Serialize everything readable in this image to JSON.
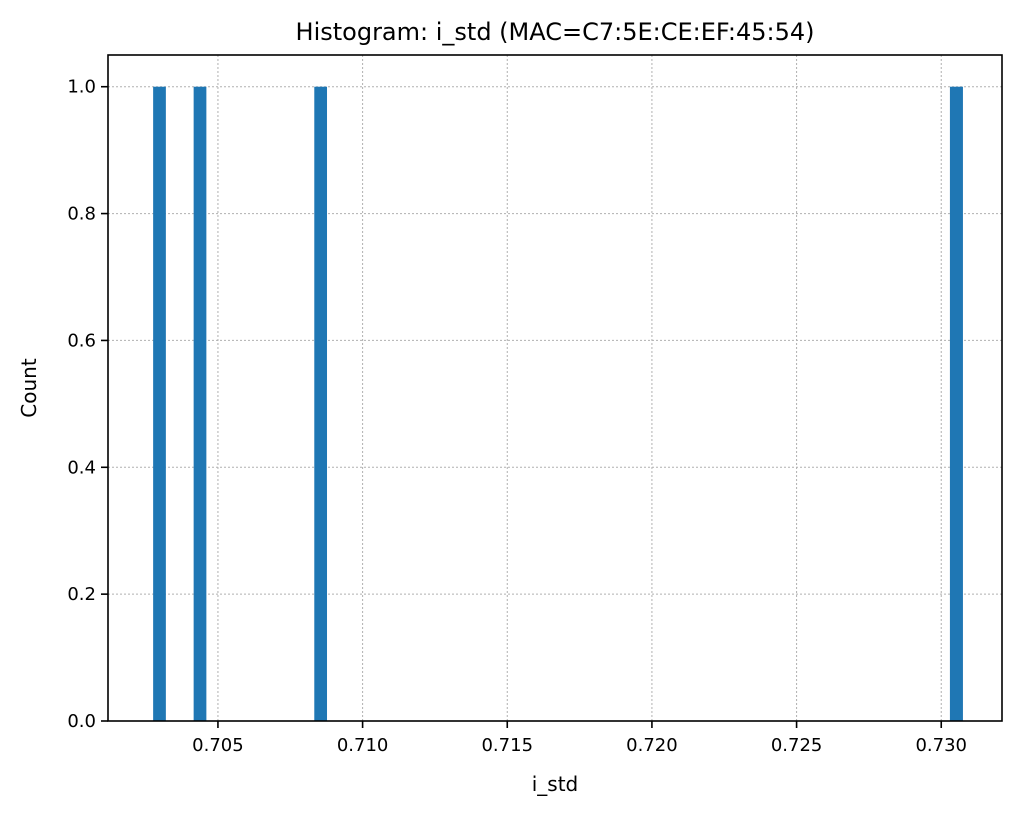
{
  "chart_data": {
    "type": "bar",
    "title": "Histogram: i_std (MAC=C7:5E:CE:EF:45:54)",
    "xlabel": "i_std",
    "ylabel": "Count",
    "xlim": [
      0.7012,
      0.7321
    ],
    "ylim": [
      0.0,
      1.05
    ],
    "x_ticks": [
      0.705,
      0.71,
      0.715,
      0.72,
      0.725,
      0.73
    ],
    "x_tick_labels": [
      "0.705",
      "0.710",
      "0.715",
      "0.720",
      "0.725",
      "0.730"
    ],
    "y_ticks": [
      0.0,
      0.2,
      0.4,
      0.6,
      0.8,
      1.0
    ],
    "y_tick_labels": [
      "0.0",
      "0.2",
      "0.4",
      "0.6",
      "0.8",
      "1.0"
    ],
    "bins": [
      {
        "x0": 0.70276,
        "x1": 0.7032,
        "count": 1
      },
      {
        "x0": 0.70416,
        "x1": 0.7046,
        "count": 1
      },
      {
        "x0": 0.70833,
        "x1": 0.70877,
        "count": 1
      },
      {
        "x0": 0.7303,
        "x1": 0.73075,
        "count": 1
      }
    ],
    "bar_color": "#1f77b4",
    "grid": true
  }
}
